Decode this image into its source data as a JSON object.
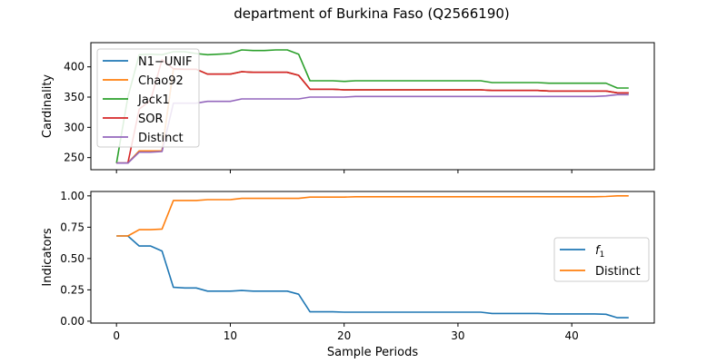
{
  "figure": {
    "title": "department of Burkina Faso (Q2566190)"
  },
  "chart_data": [
    {
      "type": "line",
      "title": "department of Burkina Faso (Q2566190)",
      "xlabel": "",
      "ylabel": "Cardinality",
      "xlim": [
        -2.25,
        47.25
      ],
      "ylim": [
        230,
        440
      ],
      "yticks": [
        250,
        300,
        350,
        400
      ],
      "xticks": [
        0,
        10,
        20,
        30,
        40
      ],
      "legend_position": "upper left",
      "grid": false,
      "series": [
        {
          "name": "N1−UNIF",
          "color": "#1f77b4",
          "x": [
            0,
            1,
            2,
            3,
            4,
            5,
            6,
            7,
            8,
            9,
            10,
            11,
            12,
            13,
            14,
            15,
            16,
            17,
            18,
            19,
            20,
            21,
            22,
            23,
            24,
            25,
            26,
            27,
            28,
            29,
            30,
            31,
            32,
            33,
            34,
            35,
            36,
            37,
            38,
            39,
            40,
            41,
            42,
            43,
            44,
            45
          ],
          "values": [
            241,
            241,
            261,
            261,
            261,
            396,
            396,
            396,
            388,
            388,
            388,
            392,
            391,
            391,
            391,
            391,
            386,
            363,
            363,
            363,
            362,
            362,
            362,
            362,
            362,
            362,
            362,
            362,
            362,
            362,
            362,
            362,
            362,
            361,
            361,
            361,
            361,
            361,
            360,
            360,
            360,
            360,
            360,
            360,
            357,
            357
          ]
        },
        {
          "name": "Chao92",
          "color": "#ff7f0e",
          "x": [
            0,
            1,
            2,
            3,
            4,
            5,
            6,
            7,
            8,
            9,
            10,
            11,
            12,
            13,
            14,
            15,
            16,
            17,
            18,
            19,
            20,
            21,
            22,
            23,
            24,
            25,
            26,
            27,
            28,
            29,
            30,
            31,
            32,
            33,
            34,
            35,
            36,
            37,
            38,
            39,
            40,
            41,
            42,
            43,
            44,
            45
          ],
          "values": [
            241,
            241,
            261,
            261,
            261,
            396,
            396,
            396,
            388,
            388,
            388,
            392,
            391,
            391,
            391,
            391,
            386,
            363,
            363,
            363,
            362,
            362,
            362,
            362,
            362,
            362,
            362,
            362,
            362,
            362,
            362,
            362,
            362,
            361,
            361,
            361,
            361,
            361,
            360,
            360,
            360,
            360,
            360,
            360,
            357,
            357
          ]
        },
        {
          "name": "Jack1",
          "color": "#2ca02c",
          "x": [
            0,
            1,
            2,
            3,
            4,
            5,
            6,
            7,
            8,
            9,
            10,
            11,
            12,
            13,
            14,
            15,
            16,
            17,
            18,
            19,
            20,
            21,
            22,
            23,
            24,
            25,
            26,
            27,
            28,
            29,
            30,
            31,
            32,
            33,
            34,
            35,
            36,
            37,
            38,
            39,
            40,
            41,
            42,
            43,
            44,
            45
          ],
          "values": [
            241,
            350,
            420,
            421,
            420,
            425,
            425,
            422,
            420,
            421,
            422,
            428,
            427,
            427,
            428,
            428,
            421,
            377,
            377,
            377,
            376,
            377,
            377,
            377,
            377,
            377,
            377,
            377,
            377,
            377,
            377,
            377,
            377,
            374,
            374,
            374,
            374,
            374,
            373,
            373,
            373,
            373,
            373,
            373,
            365,
            365
          ]
        },
        {
          "name": "SOR",
          "color": "#d62728",
          "x": [
            0,
            1,
            2,
            3,
            4,
            5,
            6,
            7,
            8,
            9,
            10,
            11,
            12,
            13,
            14,
            15,
            16,
            17,
            18,
            19,
            20,
            21,
            22,
            23,
            24,
            25,
            26,
            27,
            28,
            29,
            30,
            31,
            32,
            33,
            34,
            35,
            36,
            37,
            38,
            39,
            40,
            41,
            42,
            43,
            44,
            45
          ],
          "values": [
            241,
            241,
            330,
            345,
            412,
            397,
            396,
            396,
            388,
            388,
            388,
            392,
            391,
            391,
            391,
            391,
            386,
            363,
            363,
            363,
            362,
            362,
            362,
            362,
            362,
            362,
            362,
            362,
            362,
            362,
            362,
            362,
            362,
            361,
            361,
            361,
            361,
            361,
            360,
            360,
            360,
            360,
            360,
            360,
            357,
            357
          ]
        },
        {
          "name": "Distinct",
          "color": "#9467bd",
          "x": [
            0,
            1,
            2,
            3,
            4,
            5,
            6,
            7,
            8,
            9,
            10,
            11,
            12,
            13,
            14,
            15,
            16,
            17,
            18,
            19,
            20,
            21,
            22,
            23,
            24,
            25,
            26,
            27,
            28,
            29,
            30,
            31,
            32,
            33,
            34,
            35,
            36,
            37,
            38,
            39,
            40,
            41,
            42,
            43,
            44,
            45
          ],
          "values": [
            241,
            241,
            259,
            259,
            260,
            340,
            340,
            340,
            343,
            343,
            343,
            347,
            347,
            347,
            347,
            347,
            347,
            350,
            350,
            350,
            350,
            351,
            351,
            351,
            351,
            351,
            351,
            351,
            351,
            351,
            351,
            351,
            351,
            351,
            351,
            351,
            351,
            351,
            351,
            351,
            351,
            351,
            351,
            352,
            354,
            354
          ]
        }
      ]
    },
    {
      "type": "line",
      "title": "",
      "xlabel": "Sample Periods",
      "ylabel": "Indicators",
      "xlim": [
        -2.25,
        47.25
      ],
      "ylim": [
        -0.015,
        1.035
      ],
      "yticks": [
        0.0,
        0.25,
        0.5,
        0.75,
        1.0
      ],
      "ytick_labels": [
        "0.00",
        "0.25",
        "0.50",
        "0.75",
        "1.00"
      ],
      "xticks": [
        0,
        10,
        20,
        30,
        40
      ],
      "legend_position": "center right",
      "grid": false,
      "series": [
        {
          "name": "f1",
          "color": "#1f77b4",
          "x": [
            0,
            1,
            2,
            3,
            4,
            5,
            6,
            7,
            8,
            9,
            10,
            11,
            12,
            13,
            14,
            15,
            16,
            17,
            18,
            19,
            20,
            21,
            22,
            23,
            24,
            25,
            26,
            27,
            28,
            29,
            30,
            31,
            32,
            33,
            34,
            35,
            36,
            37,
            38,
            39,
            40,
            41,
            42,
            43,
            44,
            45
          ],
          "values": [
            0.68,
            0.68,
            0.6,
            0.6,
            0.56,
            0.27,
            0.265,
            0.265,
            0.24,
            0.24,
            0.24,
            0.245,
            0.24,
            0.24,
            0.24,
            0.24,
            0.215,
            0.075,
            0.075,
            0.075,
            0.072,
            0.072,
            0.072,
            0.072,
            0.072,
            0.072,
            0.072,
            0.072,
            0.072,
            0.072,
            0.072,
            0.072,
            0.072,
            0.062,
            0.062,
            0.062,
            0.062,
            0.062,
            0.058,
            0.058,
            0.058,
            0.058,
            0.058,
            0.055,
            0.028,
            0.028
          ]
        },
        {
          "name": "Distinct",
          "color": "#ff7f0e",
          "x": [
            0,
            1,
            2,
            3,
            4,
            5,
            6,
            7,
            8,
            9,
            10,
            11,
            12,
            13,
            14,
            15,
            16,
            17,
            18,
            19,
            20,
            21,
            22,
            23,
            24,
            25,
            26,
            27,
            28,
            29,
            30,
            31,
            32,
            33,
            34,
            35,
            36,
            37,
            38,
            39,
            40,
            41,
            42,
            43,
            44,
            45
          ],
          "values": [
            0.68,
            0.68,
            0.73,
            0.73,
            0.735,
            0.963,
            0.963,
            0.963,
            0.97,
            0.97,
            0.97,
            0.98,
            0.98,
            0.98,
            0.98,
            0.98,
            0.98,
            0.99,
            0.99,
            0.99,
            0.99,
            0.993,
            0.993,
            0.993,
            0.993,
            0.993,
            0.993,
            0.993,
            0.993,
            0.993,
            0.993,
            0.993,
            0.993,
            0.993,
            0.993,
            0.993,
            0.993,
            0.993,
            0.993,
            0.993,
            0.993,
            0.993,
            0.993,
            0.995,
            1.0,
            1.0
          ]
        }
      ]
    }
  ]
}
